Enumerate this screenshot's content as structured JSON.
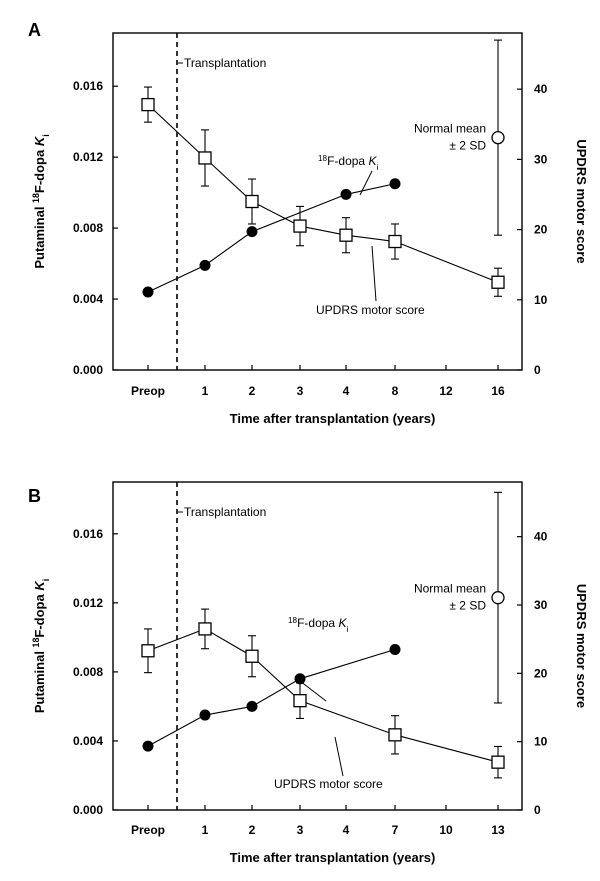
{
  "chart_data": [
    {
      "type": "line",
      "panel_label": "A",
      "categories": [
        "Preop",
        "1",
        "2",
        "3",
        "4",
        "8",
        "12",
        "16"
      ],
      "xlabel": "Time after transplantation (years)",
      "ylabel_left": {
        "prefix": "Putaminal ",
        "sup": "18",
        "mid": "F-dopa ",
        "k": "K",
        "sub": "i"
      },
      "ylabel_right": "UPDRS motor score",
      "ylim_left": [
        0,
        0.019
      ],
      "ylim_right": [
        0,
        48
      ],
      "left_ticks": [
        "0.000",
        "0.004",
        "0.008",
        "0.012",
        "0.016"
      ],
      "right_ticks": [
        "0",
        "10",
        "20",
        "30",
        "40"
      ],
      "transplant_label": "Transplantation",
      "series": [
        {
          "name": "18F-dopa Ki",
          "label": {
            "sup": "18",
            "mid": "F-dopa ",
            "k": "K",
            "sub": "i"
          },
          "marker": "filled-circle",
          "axis": "left",
          "points": [
            {
              "x": "Preop",
              "y": 0.0044
            },
            {
              "x": "1",
              "y": 0.0059
            },
            {
              "x": "2",
              "y": 0.0078
            },
            {
              "x": "4",
              "y": 0.0099
            },
            {
              "x": "8",
              "y": 0.0105
            }
          ]
        },
        {
          "name": "UPDRS motor score",
          "label": "UPDRS motor score",
          "marker": "open-square",
          "axis": "right",
          "points": [
            {
              "x": "Preop",
              "y": 37.8,
              "err": 2.5
            },
            {
              "x": "1",
              "y": 30.2,
              "err": 4.0
            },
            {
              "x": "2",
              "y": 24.0,
              "err": 3.2
            },
            {
              "x": "3",
              "y": 20.5,
              "err": 2.8
            },
            {
              "x": "4",
              "y": 19.2,
              "err": 2.5
            },
            {
              "x": "8",
              "y": 18.3,
              "err": 2.5
            },
            {
              "x": "16",
              "y": 12.5,
              "err": 2.0
            }
          ]
        }
      ],
      "normal": {
        "label_line1": "Normal mean",
        "label_line2": "± 2 SD",
        "x": "16",
        "y": 0.0131,
        "err": 0.0055
      }
    },
    {
      "type": "line",
      "panel_label": "B",
      "categories": [
        "Preop",
        "1",
        "2",
        "3",
        "4",
        "7",
        "10",
        "13"
      ],
      "xlabel": "Time after transplantation (years)",
      "ylabel_left": {
        "prefix": "Putaminal ",
        "sup": "18",
        "mid": "F-dopa ",
        "k": "K",
        "sub": "i"
      },
      "ylabel_right": "UPDRS motor score",
      "ylim_left": [
        0,
        0.019
      ],
      "ylim_right": [
        0,
        48
      ],
      "left_ticks": [
        "0.000",
        "0.004",
        "0.008",
        "0.012",
        "0.016"
      ],
      "right_ticks": [
        "0",
        "10",
        "20",
        "30",
        "40"
      ],
      "transplant_label": "Transplantation",
      "series": [
        {
          "name": "18F-dopa Ki",
          "label": {
            "sup": "18",
            "mid": "F-dopa ",
            "k": "K",
            "sub": "i"
          },
          "marker": "filled-circle",
          "axis": "left",
          "points": [
            {
              "x": "Preop",
              "y": 0.0037
            },
            {
              "x": "1",
              "y": 0.0055
            },
            {
              "x": "2",
              "y": 0.006
            },
            {
              "x": "3",
              "y": 0.0076
            },
            {
              "x": "7",
              "y": 0.0093
            }
          ]
        },
        {
          "name": "UPDRS motor score",
          "label": "UPDRS motor score",
          "marker": "open-square",
          "axis": "right",
          "points": [
            {
              "x": "Preop",
              "y": 23.3,
              "err": 3.2
            },
            {
              "x": "1",
              "y": 26.5,
              "err": 2.9
            },
            {
              "x": "2",
              "y": 22.5,
              "err": 3.0
            },
            {
              "x": "3",
              "y": 16.0,
              "err": 2.6
            },
            {
              "x": "7",
              "y": 11.0,
              "err": 2.8
            },
            {
              "x": "13",
              "y": 7.0,
              "err": 2.3
            }
          ]
        }
      ],
      "normal": {
        "label_line1": "Normal mean",
        "label_line2": "± 2 SD",
        "x": "13",
        "y": 0.0123,
        "err": 0.0061
      }
    }
  ]
}
